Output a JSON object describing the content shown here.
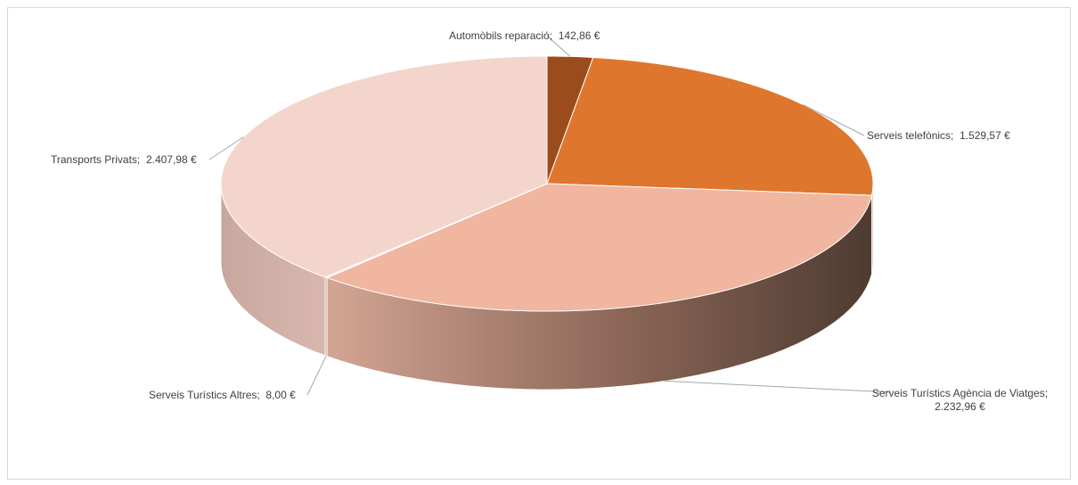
{
  "chart_data": {
    "type": "pie",
    "style": "3d",
    "title": "",
    "slices": [
      {
        "label": "Automòbils reparació",
        "value": 142.86,
        "value_text": "142,86 €",
        "color": "#9B4C1C"
      },
      {
        "label": "Serveis telefònics",
        "value": 1529.57,
        "value_text": "1.529,57 €",
        "color": "#DF762D"
      },
      {
        "label": "Serveis Turístics Agència de Viatges",
        "value": 2232.96,
        "value_text": "2.232,96 €",
        "color": "#F0B69F"
      },
      {
        "label": "Serveis Turístics Altres",
        "value": 8.0,
        "value_text": "8,00 €",
        "color": "#F4E2DC"
      },
      {
        "label": "Transports Privats",
        "value": 2407.98,
        "value_text": "2.407,98 €",
        "color": "#F4D5CC"
      }
    ]
  }
}
